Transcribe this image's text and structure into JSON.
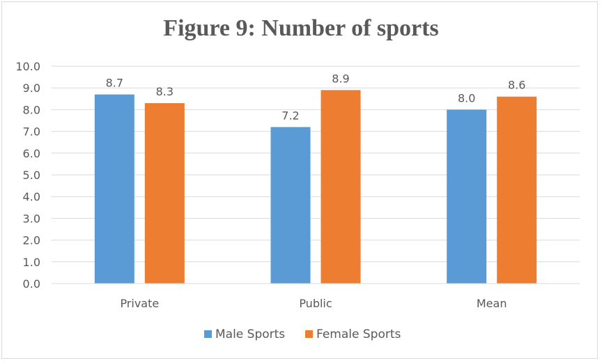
{
  "chart_data": {
    "type": "bar",
    "title": "Figure 9: Number of sports",
    "categories": [
      "Private",
      "Public",
      "Mean"
    ],
    "series": [
      {
        "name": "Male Sports",
        "values": [
          8.7,
          7.2,
          8.0
        ],
        "labels": [
          "8.7",
          "7.2",
          "8.0"
        ],
        "color": "#5b9bd5"
      },
      {
        "name": "Female Sports",
        "values": [
          8.3,
          8.9,
          8.6
        ],
        "labels": [
          "8.3",
          "8.9",
          "8.6"
        ],
        "color": "#ed7d31"
      }
    ],
    "ylim": [
      0,
      10
    ],
    "yticks": [
      "0.0",
      "1.0",
      "2.0",
      "3.0",
      "4.0",
      "5.0",
      "6.0",
      "7.0",
      "8.0",
      "9.0",
      "10.0"
    ],
    "xlabel": "",
    "ylabel": "",
    "grid": true,
    "legend_position": "bottom"
  }
}
